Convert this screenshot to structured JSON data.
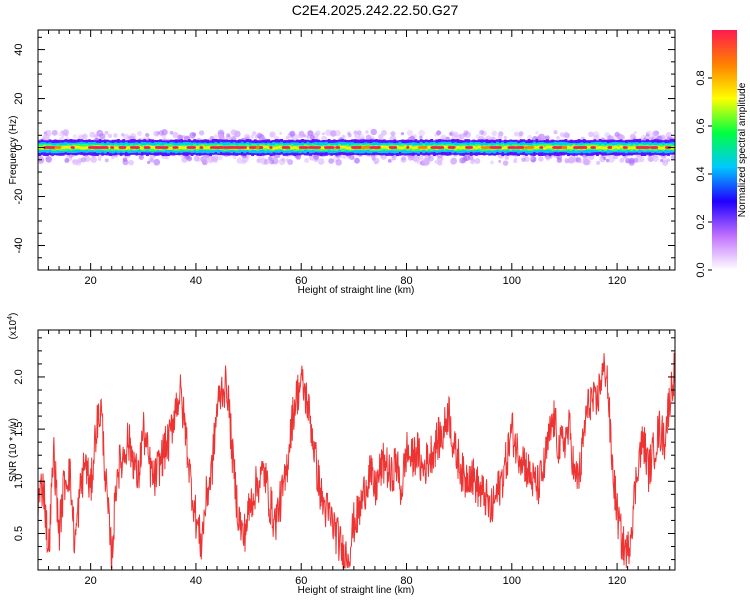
{
  "title": "C2E4.2025.242.22.50.G27",
  "chart_data": [
    {
      "type": "heatmap",
      "name": "spectrogram",
      "xlabel": "Height of straight line (km)",
      "ylabel": "Frequency (Hz)",
      "xlim": [
        10,
        131
      ],
      "ylim": [
        -50,
        48
      ],
      "xticks": [
        20,
        40,
        60,
        80,
        100,
        120
      ],
      "yticks": [
        -40,
        -20,
        0,
        20,
        40
      ],
      "band_center_hz": 0,
      "band_halfwidth_hz": 2,
      "colorbar": {
        "label": "Normalized spectral amplitude",
        "range": [
          0,
          1
        ],
        "ticks": [
          0.0,
          0.2,
          0.4,
          0.6,
          0.8
        ],
        "tick_labels": [
          "0.0",
          "0.2",
          "0.4",
          "0.6",
          "0.8"
        ],
        "colors": [
          "#ffffff",
          "#c070ff",
          "#2000ff",
          "#00c8ff",
          "#00ff40",
          "#ffff00",
          "#ff8000",
          "#ff1a50"
        ]
      }
    },
    {
      "type": "line",
      "name": "snr",
      "xlabel": "Height of straight line (km)",
      "ylabel": "SNR (10 * v/v)",
      "y_multiplier": "(x10",
      "y_multiplier_exp": "4",
      "y_multiplier_close": ")",
      "xlim": [
        10,
        131
      ],
      "ylim": [
        0.15,
        2.45
      ],
      "xticks": [
        20,
        40,
        60,
        80,
        100,
        120
      ],
      "yticks": [
        0.5,
        1.0,
        1.5,
        2.0
      ],
      "ytick_labels": [
        "0.5",
        "1.0",
        "1.5",
        "2.0"
      ],
      "color": "#ee3333",
      "anchors": [
        [
          10,
          0.8
        ],
        [
          11,
          1.0
        ],
        [
          12,
          0.3
        ],
        [
          13,
          1.3
        ],
        [
          14,
          0.5
        ],
        [
          15,
          1.0
        ],
        [
          16,
          1.1
        ],
        [
          17,
          0.4
        ],
        [
          18,
          0.9
        ],
        [
          19,
          1.2
        ],
        [
          20,
          0.9
        ],
        [
          21,
          1.5
        ],
        [
          22,
          1.7
        ],
        [
          23,
          0.9
        ],
        [
          24,
          0.25
        ],
        [
          25,
          1.1
        ],
        [
          26,
          1.2
        ],
        [
          27,
          1.4
        ],
        [
          28,
          1.25
        ],
        [
          29,
          1.0
        ],
        [
          30,
          1.5
        ],
        [
          31,
          1.2
        ],
        [
          32,
          1.0
        ],
        [
          33,
          1.15
        ],
        [
          34,
          1.3
        ],
        [
          35,
          1.4
        ],
        [
          36,
          1.7
        ],
        [
          37,
          1.85
        ],
        [
          38,
          1.5
        ],
        [
          39,
          1.0
        ],
        [
          40,
          0.65
        ],
        [
          41,
          0.4
        ],
        [
          42,
          0.85
        ],
        [
          43,
          1.1
        ],
        [
          44,
          1.7
        ],
        [
          45,
          1.9
        ],
        [
          46,
          1.9
        ],
        [
          47,
          1.2
        ],
        [
          48,
          0.7
        ],
        [
          49,
          0.45
        ],
        [
          50,
          0.7
        ],
        [
          51,
          0.9
        ],
        [
          52,
          1.0
        ],
        [
          53,
          1.1
        ],
        [
          54,
          0.8
        ],
        [
          55,
          0.6
        ],
        [
          56,
          0.8
        ],
        [
          57,
          1.0
        ],
        [
          58,
          1.5
        ],
        [
          59,
          1.8
        ],
        [
          60,
          1.95
        ],
        [
          61,
          1.8
        ],
        [
          62,
          1.5
        ],
        [
          63,
          1.1
        ],
        [
          64,
          0.8
        ],
        [
          65,
          0.7
        ],
        [
          66,
          0.6
        ],
        [
          67,
          0.45
        ],
        [
          68,
          0.3
        ],
        [
          69,
          0.3
        ],
        [
          70,
          0.6
        ],
        [
          71,
          0.7
        ],
        [
          72,
          0.9
        ],
        [
          73,
          1.1
        ],
        [
          74,
          0.9
        ],
        [
          75,
          1.1
        ],
        [
          76,
          1.2
        ],
        [
          77,
          1.0
        ],
        [
          78,
          1.2
        ],
        [
          79,
          0.9
        ],
        [
          80,
          1.3
        ],
        [
          81,
          1.2
        ],
        [
          82,
          1.3
        ],
        [
          83,
          1.1
        ],
        [
          84,
          1.2
        ],
        [
          85,
          1.3
        ],
        [
          86,
          1.4
        ],
        [
          87,
          1.45
        ],
        [
          88,
          1.7
        ],
        [
          89,
          1.3
        ],
        [
          90,
          1.2
        ],
        [
          91,
          1.0
        ],
        [
          92,
          1.1
        ],
        [
          93,
          1.0
        ],
        [
          94,
          0.9
        ],
        [
          95,
          0.85
        ],
        [
          96,
          0.7
        ],
        [
          97,
          0.85
        ],
        [
          98,
          1.0
        ],
        [
          99,
          1.2
        ],
        [
          100,
          1.5
        ],
        [
          101,
          1.3
        ],
        [
          102,
          1.25
        ],
        [
          103,
          1.1
        ],
        [
          104,
          1.0
        ],
        [
          105,
          0.95
        ],
        [
          106,
          1.1
        ],
        [
          107,
          1.4
        ],
        [
          108,
          1.6
        ],
        [
          109,
          1.3
        ],
        [
          110,
          1.4
        ],
        [
          111,
          1.5
        ],
        [
          112,
          1.0
        ],
        [
          113,
          1.1
        ],
        [
          114,
          1.6
        ],
        [
          115,
          1.8
        ],
        [
          116,
          1.7
        ],
        [
          117,
          2.0
        ],
        [
          118,
          2.1
        ],
        [
          119,
          1.2
        ],
        [
          120,
          0.7
        ],
        [
          121,
          0.4
        ],
        [
          122,
          0.3
        ],
        [
          123,
          0.7
        ],
        [
          124,
          1.2
        ],
        [
          125,
          1.4
        ],
        [
          126,
          1.1
        ],
        [
          127,
          1.3
        ],
        [
          128,
          1.5
        ],
        [
          129,
          1.4
        ],
        [
          130,
          1.8
        ],
        [
          131,
          2.1
        ]
      ]
    }
  ]
}
